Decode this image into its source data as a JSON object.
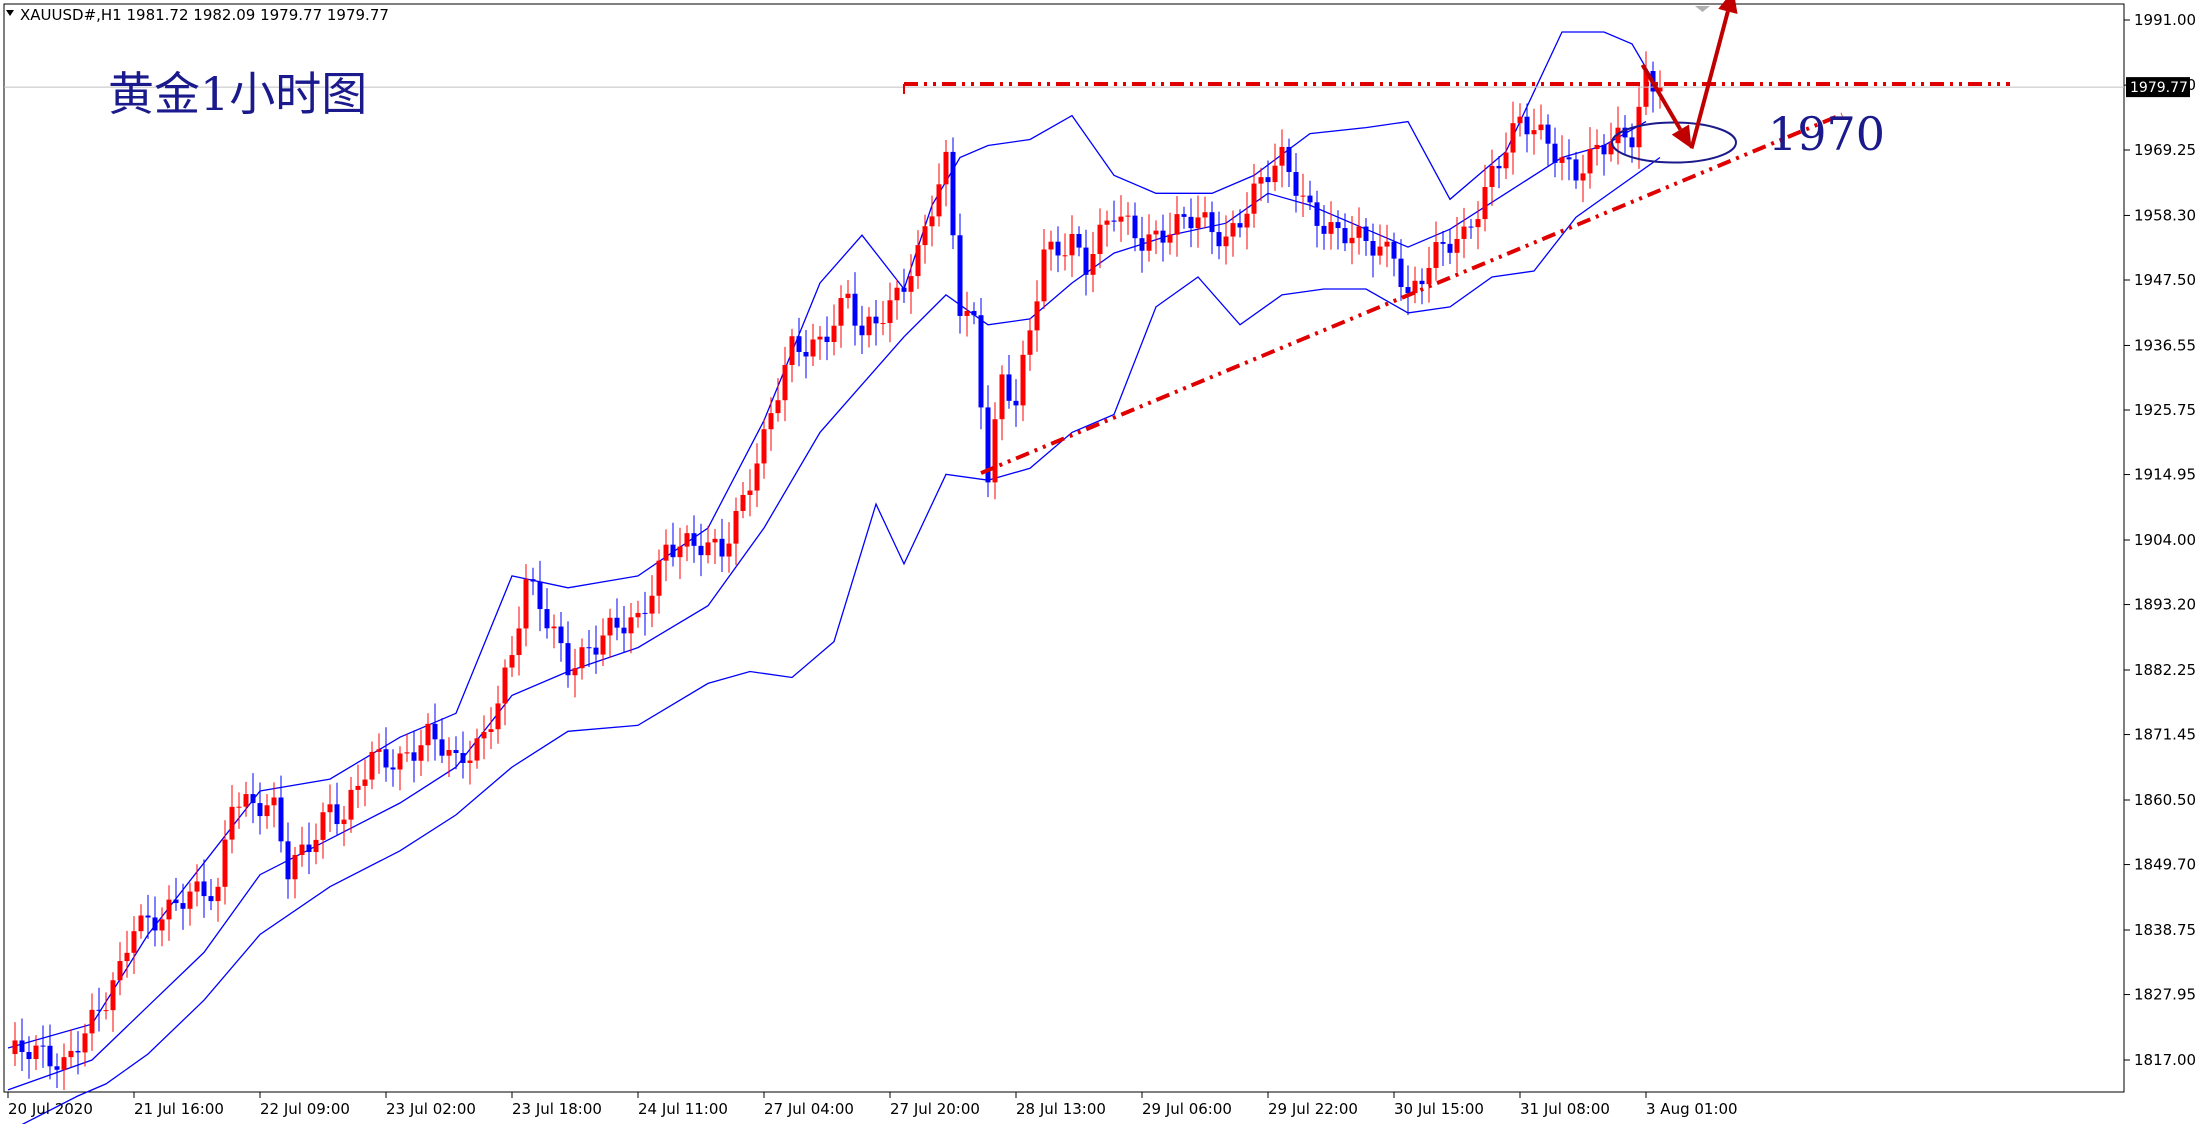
{
  "header": {
    "symbol_line": "XAUUSD#,H1  1981.72 1982.09 1979.77 1979.77"
  },
  "title": "黄金1小时图",
  "current_price_label": "1979.77",
  "annotation_label": "1970",
  "colors": {
    "bull": "#ff0000",
    "bear": "#0000ff",
    "band": "#0000ff",
    "trendline": "#e00000",
    "arrow": "#c00000",
    "ellipse": "#1a1a8c",
    "axis": "#000000",
    "price_tag_bg": "#000000"
  },
  "chart_data": {
    "type": "candlestick",
    "symbol": "XAUUSD#",
    "timeframe": "H1",
    "ohlc_header": {
      "open": 1981.72,
      "high": 1982.09,
      "low": 1979.77,
      "close": 1979.77
    },
    "y_range": [
      1812.3,
      1994.8
    ],
    "y_ticks": [
      "1991.00",
      "1980.10",
      "1969.25",
      "1958.30",
      "1947.50",
      "1936.55",
      "1925.75",
      "1914.95",
      "1904.00",
      "1893.20",
      "1882.25",
      "1871.45",
      "1860.50",
      "1849.70",
      "1838.75",
      "1827.95",
      "1817.00"
    ],
    "y_tick_values": [
      1991.0,
      1980.1,
      1969.25,
      1958.3,
      1947.5,
      1936.55,
      1925.75,
      1914.95,
      1904.0,
      1893.2,
      1882.25,
      1871.45,
      1860.5,
      1849.7,
      1838.75,
      1827.95,
      1817.0
    ],
    "x_tick_labels": [
      "20 Jul 2020",
      "21 Jul 16:00",
      "22 Jul 09:00",
      "23 Jul 02:00",
      "23 Jul 18:00",
      "24 Jul 11:00",
      "27 Jul 04:00",
      "27 Jul 20:00",
      "28 Jul 13:00",
      "29 Jul 06:00",
      "29 Jul 22:00",
      "30 Jul 15:00",
      "31 Jul 08:00",
      "3 Aug 01:00"
    ],
    "x_tick_bar_index": [
      0,
      18,
      36,
      54,
      72,
      90,
      108,
      126,
      144,
      162,
      180,
      198,
      216,
      234
    ],
    "x_total_bars": 305,
    "current_price": 1979.77,
    "path_points": [
      [
        0,
        1818
      ],
      [
        8,
        1817
      ],
      [
        10,
        1821
      ],
      [
        14,
        1826
      ],
      [
        16,
        1831
      ],
      [
        18,
        1840
      ],
      [
        22,
        1842
      ],
      [
        24,
        1843
      ],
      [
        30,
        1845
      ],
      [
        32,
        1862
      ],
      [
        38,
        1858
      ],
      [
        40,
        1848
      ],
      [
        44,
        1856
      ],
      [
        46,
        1860
      ],
      [
        48,
        1857
      ],
      [
        52,
        1867
      ],
      [
        56,
        1868
      ],
      [
        60,
        1871
      ],
      [
        64,
        1866
      ],
      [
        68,
        1872
      ],
      [
        72,
        1884
      ],
      [
        74,
        1896
      ],
      [
        78,
        1889
      ],
      [
        80,
        1884
      ],
      [
        84,
        1886
      ],
      [
        86,
        1888
      ],
      [
        90,
        1891
      ],
      [
        94,
        1903
      ],
      [
        98,
        1902
      ],
      [
        102,
        1903
      ],
      [
        108,
        1920
      ],
      [
        110,
        1928
      ],
      [
        112,
        1936
      ],
      [
        116,
        1938
      ],
      [
        120,
        1944
      ],
      [
        122,
        1937
      ],
      [
        126,
        1944
      ],
      [
        130,
        1952
      ],
      [
        134,
        1966
      ],
      [
        136,
        1943
      ],
      [
        138,
        1941
      ],
      [
        140,
        1916
      ],
      [
        142,
        1931
      ],
      [
        144,
        1926
      ],
      [
        146,
        1938
      ],
      [
        148,
        1952
      ],
      [
        152,
        1955
      ],
      [
        154,
        1950
      ],
      [
        158,
        1958
      ],
      [
        162,
        1955
      ],
      [
        166,
        1956
      ],
      [
        170,
        1957
      ],
      [
        174,
        1955
      ],
      [
        178,
        1962
      ],
      [
        182,
        1967
      ],
      [
        186,
        1960
      ],
      [
        190,
        1955
      ],
      [
        194,
        1953
      ],
      [
        198,
        1953
      ],
      [
        200,
        1945
      ],
      [
        204,
        1951
      ],
      [
        208,
        1955
      ],
      [
        212,
        1966
      ],
      [
        216,
        1973
      ],
      [
        220,
        1971
      ],
      [
        224,
        1966
      ],
      [
        228,
        1969
      ],
      [
        232,
        1972
      ],
      [
        234,
        1982
      ],
      [
        236,
        1980
      ]
    ],
    "bands": {
      "upper": [
        [
          0,
          1819
        ],
        [
          12,
          1823
        ],
        [
          20,
          1838
        ],
        [
          28,
          1850
        ],
        [
          36,
          1862
        ],
        [
          46,
          1864
        ],
        [
          56,
          1871
        ],
        [
          64,
          1875
        ],
        [
          72,
          1898
        ],
        [
          80,
          1896
        ],
        [
          90,
          1898
        ],
        [
          100,
          1906
        ],
        [
          108,
          1924
        ],
        [
          116,
          1947
        ],
        [
          122,
          1955
        ],
        [
          128,
          1946
        ],
        [
          132,
          1960
        ],
        [
          136,
          1968
        ],
        [
          140,
          1970
        ],
        [
          146,
          1971
        ],
        [
          152,
          1975
        ],
        [
          158,
          1965
        ],
        [
          164,
          1962
        ],
        [
          172,
          1962
        ],
        [
          178,
          1965
        ],
        [
          186,
          1972
        ],
        [
          194,
          1973
        ],
        [
          200,
          1974
        ],
        [
          206,
          1961
        ],
        [
          214,
          1969
        ],
        [
          222,
          1989
        ],
        [
          228,
          1989
        ],
        [
          232,
          1987
        ],
        [
          236,
          1979
        ]
      ],
      "middle": [
        [
          0,
          1812
        ],
        [
          12,
          1817
        ],
        [
          20,
          1826
        ],
        [
          28,
          1835
        ],
        [
          36,
          1848
        ],
        [
          46,
          1854
        ],
        [
          56,
          1860
        ],
        [
          64,
          1866
        ],
        [
          72,
          1878
        ],
        [
          80,
          1882
        ],
        [
          90,
          1886
        ],
        [
          100,
          1893
        ],
        [
          108,
          1906
        ],
        [
          116,
          1922
        ],
        [
          122,
          1930
        ],
        [
          128,
          1938
        ],
        [
          134,
          1945
        ],
        [
          140,
          1940
        ],
        [
          146,
          1941
        ],
        [
          152,
          1947
        ],
        [
          158,
          1952
        ],
        [
          166,
          1955
        ],
        [
          174,
          1957
        ],
        [
          180,
          1962
        ],
        [
          186,
          1960
        ],
        [
          194,
          1956
        ],
        [
          200,
          1953
        ],
        [
          206,
          1956
        ],
        [
          214,
          1962
        ],
        [
          222,
          1968
        ],
        [
          228,
          1970
        ],
        [
          234,
          1974
        ]
      ],
      "lower": [
        [
          0,
          1805
        ],
        [
          10,
          1811
        ],
        [
          14,
          1813
        ],
        [
          20,
          1818
        ],
        [
          28,
          1827
        ],
        [
          36,
          1838
        ],
        [
          46,
          1846
        ],
        [
          56,
          1852
        ],
        [
          64,
          1858
        ],
        [
          72,
          1866
        ],
        [
          80,
          1872
        ],
        [
          90,
          1873
        ],
        [
          100,
          1880
        ],
        [
          106,
          1882
        ],
        [
          112,
          1881
        ],
        [
          118,
          1887
        ],
        [
          124,
          1910
        ],
        [
          128,
          1900
        ],
        [
          134,
          1915
        ],
        [
          140,
          1914
        ],
        [
          146,
          1916
        ],
        [
          152,
          1922
        ],
        [
          158,
          1925
        ],
        [
          164,
          1943
        ],
        [
          170,
          1948
        ],
        [
          176,
          1940
        ],
        [
          182,
          1945
        ],
        [
          188,
          1946
        ],
        [
          194,
          1946
        ],
        [
          200,
          1942
        ],
        [
          206,
          1943
        ],
        [
          212,
          1948
        ],
        [
          218,
          1949
        ],
        [
          224,
          1958
        ],
        [
          230,
          1963
        ],
        [
          236,
          1968
        ]
      ]
    },
    "resistance_line": {
      "from": [
        128,
        1980.3
      ],
      "to": [
        286,
        1980.3
      ]
    },
    "support_line": {
      "from": [
        139,
        1915.2
      ],
      "to": [
        262,
        1975.2
      ]
    },
    "arrow_down": {
      "from": [
        233.5,
        1983.5
      ],
      "to": [
        240.5,
        1969.5
      ]
    },
    "arrow_up": {
      "from": [
        240.5,
        1969.5
      ],
      "to": [
        246.5,
        1996
      ]
    },
    "ellipse_center": [
      238,
      1970.5
    ]
  }
}
